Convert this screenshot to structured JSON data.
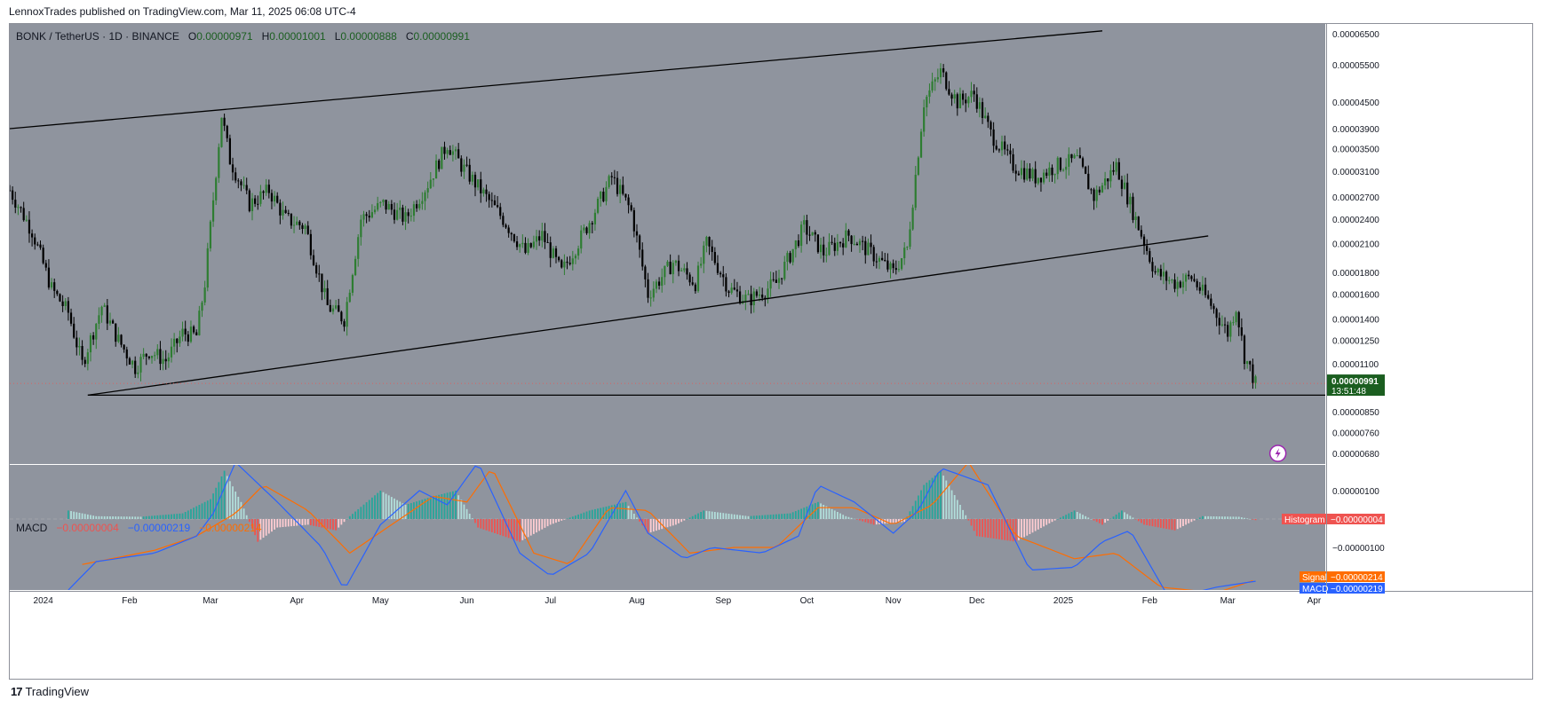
{
  "header": {
    "publish_line": "LennoxTrades published on TradingView.com, Mar 11, 2025 06:08 UTC-4"
  },
  "legend": {
    "symbol": "BONK / TetherUS · 1D · BINANCE",
    "o_label": "O",
    "o_value": "0.00000971",
    "h_label": "H",
    "h_value": "0.00001001",
    "l_label": "L",
    "l_value": "0.00000888",
    "c_label": "C",
    "c_value": "0.00000991"
  },
  "macd_legend": {
    "title": "MACD",
    "hist_value": "−0.00000004",
    "macd_value": "−0.00000219",
    "signal_value": "−0.00000214"
  },
  "footer": {
    "brand": "TradingView",
    "logo": "17"
  },
  "colors": {
    "pane_bg": "#8f949e",
    "up": "#2e7d32",
    "down": "#000000",
    "hist_pos": "#b2dfdb",
    "hist_pos_strong": "#26a69a",
    "hist_neg": "#ffcdd2",
    "hist_neg_strong": "#ef5350",
    "macd_line": "#2962ff",
    "signal_line": "#ff6d00",
    "price_label": "#1b5e20"
  },
  "chart_data": [
    {
      "type": "candlestick",
      "title": "BONK / TetherUS · 1D · BINANCE",
      "yscale": "log",
      "ylim": [
        6.6e-06,
        6.7e-06
      ],
      "y_ticks": [
        "0.00006500",
        "0.00005500",
        "0.00004500",
        "0.00003900",
        "0.00003500",
        "0.00003100",
        "0.00002700",
        "0.00002400",
        "0.00002100",
        "0.00001800",
        "0.00001600",
        "0.00001400",
        "0.00001250",
        "0.00001100",
        "0.00000991",
        "0.00000850",
        "0.00000760",
        "0.00000680"
      ],
      "y_tick_values": [
        6.5e-05,
        5.5e-05,
        4.5e-05,
        3.9e-05,
        3.5e-05,
        3.1e-05,
        2.7e-05,
        2.4e-05,
        2.1e-05,
        1.8e-05,
        1.6e-05,
        1.4e-05,
        1.25e-05,
        1.1e-05,
        9.91e-06,
        8.5e-06,
        7.6e-06,
        6.8e-06
      ],
      "x_ticks": [
        "2024",
        "Feb",
        "Mar",
        "Apr",
        "May",
        "Jun",
        "Jul",
        "Aug",
        "Sep",
        "Oct",
        "Nov",
        "Dec",
        "2025",
        "Feb",
        "Mar",
        "Apr"
      ],
      "x_tick_dates": [
        "2024-01-01",
        "2024-02-01",
        "2024-03-01",
        "2024-04-01",
        "2024-05-01",
        "2024-06-01",
        "2024-07-01",
        "2024-08-01",
        "2024-09-01",
        "2024-10-01",
        "2024-11-01",
        "2024-12-01",
        "2025-01-01",
        "2025-02-01",
        "2025-03-01",
        "2025-04-01"
      ],
      "x_range": [
        "2023-12-20",
        "2025-04-05"
      ],
      "close_path": [
        [
          "2023-12-20",
          2.8e-05
        ],
        [
          "2023-12-28",
          2.25e-05
        ],
        [
          "2024-01-04",
          1.65e-05
        ],
        [
          "2024-01-10",
          1.45e-05
        ],
        [
          "2024-01-15",
          1.1e-05
        ],
        [
          "2024-01-22",
          1.5e-05
        ],
        [
          "2024-01-28",
          1.25e-05
        ],
        [
          "2024-02-03",
          1.08e-05
        ],
        [
          "2024-02-08",
          1.18e-05
        ],
        [
          "2024-02-14",
          1.12e-05
        ],
        [
          "2024-02-20",
          1.3e-05
        ],
        [
          "2024-02-25",
          1.28e-05
        ],
        [
          "2024-02-28",
          1.7e-05
        ],
        [
          "2024-03-05",
          4.2e-05
        ],
        [
          "2024-03-08",
          3.3e-05
        ],
        [
          "2024-03-15",
          2.6e-05
        ],
        [
          "2024-03-22",
          2.8e-05
        ],
        [
          "2024-03-28",
          2.4e-05
        ],
        [
          "2024-04-04",
          2.3e-05
        ],
        [
          "2024-04-12",
          1.5e-05
        ],
        [
          "2024-04-18",
          1.4e-05
        ],
        [
          "2024-04-24",
          2.4e-05
        ],
        [
          "2024-05-02",
          2.6e-05
        ],
        [
          "2024-05-10",
          2.4e-05
        ],
        [
          "2024-05-18",
          2.9e-05
        ],
        [
          "2024-05-25",
          3.6e-05
        ],
        [
          "2024-05-30",
          3.2e-05
        ],
        [
          "2024-06-06",
          2.8e-05
        ],
        [
          "2024-06-14",
          2.4e-05
        ],
        [
          "2024-06-22",
          2e-05
        ],
        [
          "2024-06-28",
          2.2e-05
        ],
        [
          "2024-07-05",
          1.8e-05
        ],
        [
          "2024-07-14",
          2.3e-05
        ],
        [
          "2024-07-23",
          3e-05
        ],
        [
          "2024-07-30",
          2.5e-05
        ],
        [
          "2024-08-05",
          1.6e-05
        ],
        [
          "2024-08-14",
          1.9e-05
        ],
        [
          "2024-08-22",
          1.7e-05
        ],
        [
          "2024-08-26",
          2.1e-05
        ],
        [
          "2024-09-03",
          1.65e-05
        ],
        [
          "2024-09-10",
          1.55e-05
        ],
        [
          "2024-09-20",
          1.7e-05
        ],
        [
          "2024-09-30",
          2.3e-05
        ],
        [
          "2024-10-07",
          2e-05
        ],
        [
          "2024-10-16",
          2.2e-05
        ],
        [
          "2024-10-24",
          2e-05
        ],
        [
          "2024-11-01",
          1.8e-05
        ],
        [
          "2024-11-06",
          2.05e-05
        ],
        [
          "2024-11-12",
          4.5e-05
        ],
        [
          "2024-11-18",
          5.3e-05
        ],
        [
          "2024-11-24",
          4.5e-05
        ],
        [
          "2024-11-30",
          4.7e-05
        ],
        [
          "2024-12-06",
          3.8e-05
        ],
        [
          "2024-12-14",
          3.2e-05
        ],
        [
          "2024-12-22",
          3e-05
        ],
        [
          "2024-12-30",
          3.2e-05
        ],
        [
          "2025-01-06",
          3.3e-05
        ],
        [
          "2025-01-12",
          2.7e-05
        ],
        [
          "2025-01-20",
          3.2e-05
        ],
        [
          "2025-01-28",
          2.3e-05
        ],
        [
          "2025-02-03",
          1.8e-05
        ],
        [
          "2025-02-10",
          1.7e-05
        ],
        [
          "2025-02-16",
          1.75e-05
        ],
        [
          "2025-02-22",
          1.55e-05
        ],
        [
          "2025-03-01",
          1.3e-05
        ],
        [
          "2025-03-04",
          1.5e-05
        ],
        [
          "2025-03-07",
          1.15e-05
        ],
        [
          "2025-03-11",
          9.91e-06
        ]
      ],
      "last_price": "0.00000991",
      "countdown": "13:51:48",
      "trendlines": [
        {
          "from": [
            "2023-12-20",
            3.9e-05
          ],
          "to": [
            "2025-01-15",
            6.6e-05
          ]
        },
        {
          "from": [
            "2024-01-17",
            9.3e-06
          ],
          "to": [
            "2025-02-22",
            2.19e-05
          ]
        },
        {
          "from": [
            "2024-01-17",
            9.3e-06
          ],
          "to": [
            "2025-04-05",
            9.3e-06
          ]
        }
      ]
    },
    {
      "type": "histogram+line",
      "title": "MACD",
      "series": [
        {
          "name": "Histogram",
          "label": "Histogram",
          "value": "−0.00000004"
        },
        {
          "name": "Signal",
          "label": "Signal",
          "value": "−0.00000214"
        },
        {
          "name": "MACD",
          "label": "MACD",
          "value": "−0.00000219"
        }
      ],
      "y_ticks": [
        "0.00000100",
        "0.00000100"
      ],
      "y_tick_labels": [
        "0.00000100",
        "−0.00000100"
      ],
      "y_tick_values": [
        1e-06,
        -1e-06
      ],
      "ylim": [
        -2.3e-06,
        1.8e-06
      ],
      "histogram_path": [
        [
          "2024-01-10",
          3e-07
        ],
        [
          "2024-01-20",
          1e-07
        ],
        [
          "2024-02-05",
          8e-08
        ],
        [
          "2024-02-20",
          2e-07
        ],
        [
          "2024-03-01",
          7e-07
        ],
        [
          "2024-03-06",
          1.7e-06
        ],
        [
          "2024-03-12",
          6e-07
        ],
        [
          "2024-03-18",
          -8e-07
        ],
        [
          "2024-03-25",
          -3e-07
        ],
        [
          "2024-04-05",
          -2e-07
        ],
        [
          "2024-04-15",
          -4e-07
        ],
        [
          "2024-04-20",
          1e-07
        ],
        [
          "2024-05-01",
          1e-06
        ],
        [
          "2024-05-10",
          5e-07
        ],
        [
          "2024-05-20",
          8e-07
        ],
        [
          "2024-05-28",
          1e-06
        ],
        [
          "2024-06-05",
          -3e-07
        ],
        [
          "2024-06-20",
          -8e-07
        ],
        [
          "2024-07-01",
          -2e-07
        ],
        [
          "2024-07-15",
          3e-07
        ],
        [
          "2024-07-28",
          6e-07
        ],
        [
          "2024-08-05",
          -5e-07
        ],
        [
          "2024-08-15",
          -2e-07
        ],
        [
          "2024-08-25",
          3e-07
        ],
        [
          "2024-09-10",
          1e-07
        ],
        [
          "2024-09-25",
          2e-07
        ],
        [
          "2024-10-05",
          6e-07
        ],
        [
          "2024-10-15",
          1e-07
        ],
        [
          "2024-10-25",
          -2e-07
        ],
        [
          "2024-11-05",
          -1e-07
        ],
        [
          "2024-11-12",
          1.2e-06
        ],
        [
          "2024-11-18",
          1.7e-06
        ],
        [
          "2024-11-25",
          5e-07
        ],
        [
          "2024-12-01",
          -6e-07
        ],
        [
          "2024-12-15",
          -8e-07
        ],
        [
          "2024-12-28",
          -1e-07
        ],
        [
          "2025-01-05",
          3e-07
        ],
        [
          "2025-01-15",
          -2e-07
        ],
        [
          "2025-01-22",
          3e-07
        ],
        [
          "2025-01-30",
          -2e-07
        ],
        [
          "2025-02-10",
          -4e-07
        ],
        [
          "2025-02-20",
          1e-07
        ],
        [
          "2025-03-05",
          8e-08
        ],
        [
          "2025-03-11",
          -4e-08
        ]
      ],
      "macd_path": [
        [
          "2024-01-10",
          -2.5e-06
        ],
        [
          "2024-01-20",
          -1.5e-06
        ],
        [
          "2024-02-10",
          -1.2e-06
        ],
        [
          "2024-02-25",
          -6e-07
        ],
        [
          "2024-03-02",
          2e-07
        ],
        [
          "2024-03-10",
          2e-06
        ],
        [
          "2024-03-25",
          6e-07
        ],
        [
          "2024-04-10",
          -1e-06
        ],
        [
          "2024-04-18",
          -2.5e-06
        ],
        [
          "2024-05-01",
          -2e-07
        ],
        [
          "2024-05-15",
          1e-06
        ],
        [
          "2024-05-25",
          5e-07
        ],
        [
          "2024-06-05",
          2e-06
        ],
        [
          "2024-06-20",
          -1.2e-06
        ],
        [
          "2024-07-01",
          -2e-06
        ],
        [
          "2024-07-15",
          -1.2e-06
        ],
        [
          "2024-07-28",
          1e-06
        ],
        [
          "2024-08-05",
          -5e-07
        ],
        [
          "2024-08-18",
          -1.4e-06
        ],
        [
          "2024-08-28",
          -1e-06
        ],
        [
          "2024-09-15",
          -1.2e-06
        ],
        [
          "2024-09-28",
          -6e-07
        ],
        [
          "2024-10-05",
          1.2e-06
        ],
        [
          "2024-10-18",
          6e-07
        ],
        [
          "2024-11-01",
          -5e-07
        ],
        [
          "2024-11-10",
          3e-07
        ],
        [
          "2024-11-18",
          1.8e-06
        ],
        [
          "2024-12-05",
          1.2e-06
        ],
        [
          "2024-12-20",
          -1.8e-06
        ],
        [
          "2025-01-05",
          -1.7e-06
        ],
        [
          "2025-01-15",
          -8e-07
        ],
        [
          "2025-01-25",
          -4e-07
        ],
        [
          "2025-02-08",
          -2.8e-06
        ],
        [
          "2025-02-25",
          -2.4e-06
        ],
        [
          "2025-03-11",
          -2.19e-06
        ]
      ],
      "signal_path": [
        [
          "2024-01-15",
          -1.6e-06
        ],
        [
          "2024-02-10",
          -1.1e-06
        ],
        [
          "2024-02-25",
          -6e-07
        ],
        [
          "2024-03-10",
          2e-07
        ],
        [
          "2024-03-20",
          1.2e-06
        ],
        [
          "2024-04-05",
          3e-07
        ],
        [
          "2024-04-20",
          -1.2e-06
        ],
        [
          "2024-05-05",
          -2e-07
        ],
        [
          "2024-05-20",
          8e-07
        ],
        [
          "2024-06-01",
          6e-07
        ],
        [
          "2024-06-10",
          1.8e-06
        ],
        [
          "2024-06-25",
          -1.2e-06
        ],
        [
          "2024-07-08",
          -1.6e-06
        ],
        [
          "2024-07-22",
          4e-07
        ],
        [
          "2024-08-05",
          3e-07
        ],
        [
          "2024-08-20",
          -1.2e-06
        ],
        [
          "2024-09-05",
          -1e-06
        ],
        [
          "2024-09-20",
          -1e-06
        ],
        [
          "2024-10-05",
          4e-07
        ],
        [
          "2024-10-18",
          4e-07
        ],
        [
          "2024-11-01",
          -2e-07
        ],
        [
          "2024-11-15",
          5e-07
        ],
        [
          "2024-11-28",
          2e-06
        ],
        [
          "2024-12-15",
          -6e-07
        ],
        [
          "2025-01-05",
          -1.4e-06
        ],
        [
          "2025-01-20",
          -1.2e-06
        ],
        [
          "2025-02-05",
          -2.4e-06
        ],
        [
          "2025-02-25",
          -2.6e-06
        ],
        [
          "2025-03-11",
          -2.14e-06
        ]
      ]
    }
  ]
}
